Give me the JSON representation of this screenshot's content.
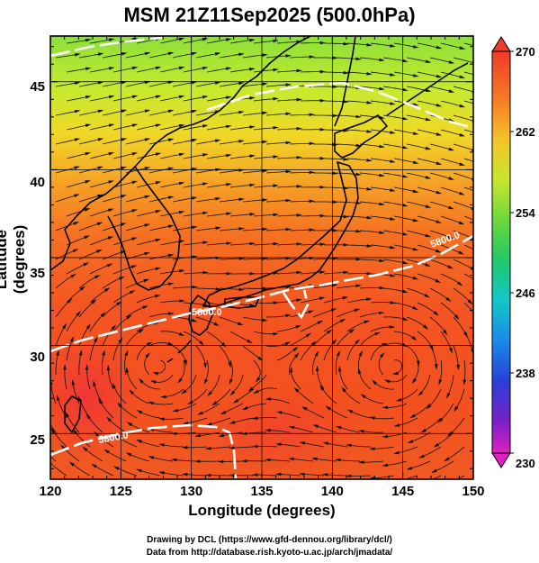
{
  "title": "MSM 21Z11Sep2025 (500.0hPa)",
  "xlabel": "Longitude (degrees)",
  "ylabel": "Latitude  (degrees)",
  "x_ticks": [
    "120",
    "125",
    "130",
    "135",
    "140",
    "145",
    "150"
  ],
  "y_ticks": [
    "25",
    "30",
    "35",
    "40",
    "45"
  ],
  "colorbar": {
    "labels": [
      "270",
      "262",
      "254",
      "246",
      "238",
      "230"
    ],
    "min": 230,
    "max": 270
  },
  "map": {
    "lon_range": [
      120,
      150
    ],
    "lat_range": [
      22.4,
      47.6
    ],
    "contour_labels": [
      "5800.0",
      "5800.0",
      "5800.0"
    ]
  },
  "credits": {
    "line1": "Drawing by DCL (https://www.gfd-dennou.org/library/dcl/)",
    "line2": "Data from http://database.rish.kyoto-u.ac.jp/arch/jmadata/"
  }
}
